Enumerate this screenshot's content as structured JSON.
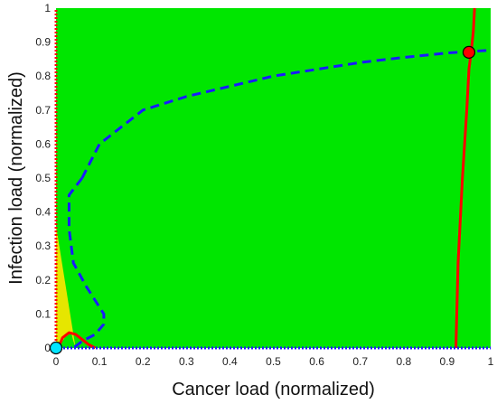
{
  "chart_data": {
    "type": "line",
    "xlabel": "Cancer load (normalized)",
    "ylabel": "Infection load (normalized)",
    "xlim": [
      0,
      1
    ],
    "ylim": [
      0,
      1
    ],
    "x_ticks": [
      "0",
      "0.1",
      "0.2",
      "0.3",
      "0.4",
      "0.5",
      "0.6",
      "0.7",
      "0.8",
      "0.9",
      "1"
    ],
    "y_ticks": [
      "0",
      "0.1",
      "0.2",
      "0.3",
      "0.4",
      "0.5",
      "0.6",
      "0.7",
      "0.8",
      "0.9",
      "1"
    ],
    "grid": false,
    "legend": "none",
    "colors": {
      "background_region": "#00e600",
      "small_region": "#e6e600",
      "red_curve": "#ff0000",
      "blue_dashed": "#1a1aff",
      "cyan_point": "#00e5ff",
      "red_point": "#ff0000"
    },
    "regions": [
      {
        "color": "yellow",
        "points": [
          [
            0,
            0.36
          ],
          [
            0,
            0
          ],
          [
            0.005,
            0
          ],
          [
            0.02,
            0.03
          ],
          [
            0.035,
            0.045
          ],
          [
            0.04,
            0.02
          ],
          [
            0.045,
            0
          ]
        ]
      }
    ],
    "series": [
      {
        "style": "dashed",
        "color": "blue",
        "x": [
          0.06,
          0.1,
          0.2,
          0.3,
          0.4,
          0.5,
          0.6,
          0.7,
          0.8,
          0.9,
          1.0
        ],
        "y": [
          0.5,
          0.6,
          0.7,
          0.74,
          0.77,
          0.8,
          0.82,
          0.84,
          0.855,
          0.868,
          0.876
        ]
      },
      {
        "style": "dashed",
        "color": "blue",
        "x": [
          0.06,
          0.03,
          0.03,
          0.04,
          0.07,
          0.09,
          0.11,
          0.11,
          0.09,
          0.06,
          0.04
        ],
        "y": [
          0.5,
          0.45,
          0.35,
          0.25,
          0.18,
          0.14,
          0.1,
          0.07,
          0.04,
          0.02,
          0.0
        ]
      },
      {
        "style": "solid",
        "color": "red",
        "x": [
          0.92,
          0.925,
          0.935,
          0.945,
          0.95,
          0.955,
          0.96,
          0.963
        ],
        "y": [
          0.0,
          0.25,
          0.5,
          0.7,
          0.82,
          0.87,
          0.93,
          1.0
        ]
      },
      {
        "style": "solid",
        "color": "red",
        "x": [
          0.005,
          0.015,
          0.03,
          0.045,
          0.06,
          0.075,
          0.09
        ],
        "y": [
          0.0,
          0.03,
          0.045,
          0.04,
          0.025,
          0.01,
          0.0
        ]
      },
      {
        "style": "dotted",
        "color": "blue",
        "x": [
          0,
          1
        ],
        "y": [
          0,
          0
        ]
      },
      {
        "style": "dotted",
        "color": "red",
        "x": [
          0,
          0
        ],
        "y": [
          0,
          1
        ]
      }
    ],
    "markers": [
      {
        "name": "origin",
        "x": 0.0,
        "y": 0.0,
        "color": "cyan"
      },
      {
        "name": "high point",
        "x": 0.95,
        "y": 0.87,
        "color": "red"
      }
    ]
  }
}
